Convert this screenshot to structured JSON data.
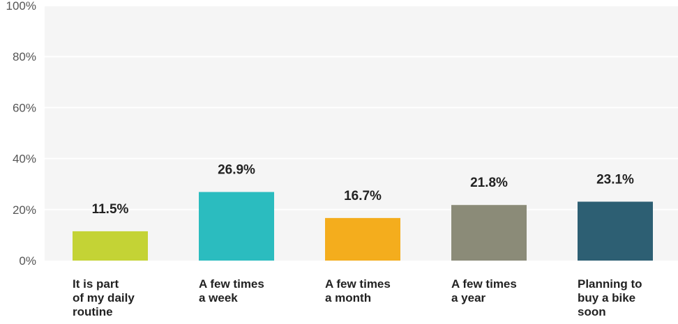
{
  "chart_data": {
    "type": "bar",
    "categories": [
      [
        "It is part",
        "of my daily",
        "routine"
      ],
      [
        "A few times",
        "a week"
      ],
      [
        "A few times",
        "a month"
      ],
      [
        "A few times",
        "a year"
      ],
      [
        "Planning to",
        "buy a bike",
        "soon"
      ]
    ],
    "values": [
      11.5,
      26.9,
      16.7,
      21.8,
      23.1
    ],
    "data_labels": [
      "11.5%",
      "26.9%",
      "16.7%",
      "21.8%",
      "23.1%"
    ],
    "colors": [
      "#c4d335",
      "#2bbcbf",
      "#f4ad1d",
      "#8b8b78",
      "#2d5f73"
    ],
    "ylim": [
      0,
      100
    ],
    "y_ticks": [
      "0%",
      "20%",
      "40%",
      "60%",
      "80%",
      "100%"
    ],
    "grid": true,
    "title": "",
    "xlabel": "",
    "ylabel": ""
  }
}
